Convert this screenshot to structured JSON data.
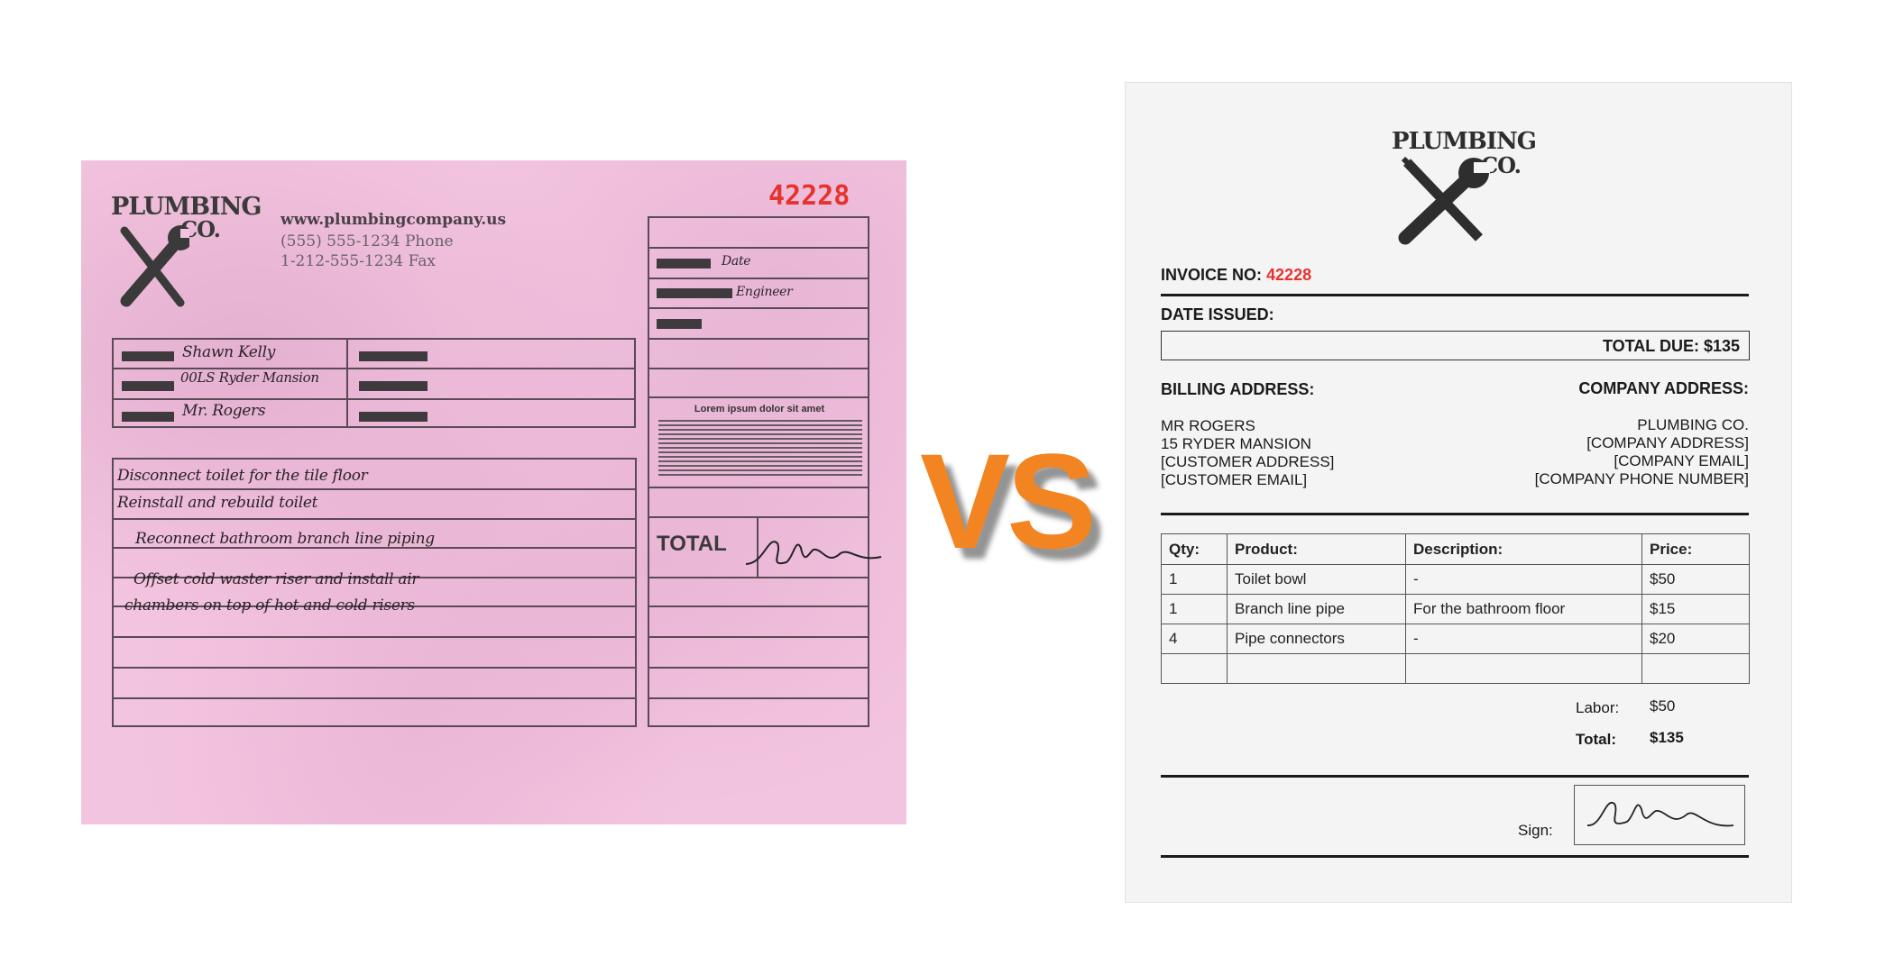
{
  "handwritten_invoice": {
    "logo": {
      "line1": "PLUMBING",
      "line2": "CO."
    },
    "website": "www.plumbingcompany.us",
    "phone": "(555) 555-1234 Phone",
    "fax": "1-212-555-1234 Fax",
    "invoice_number": "42228",
    "info_fields": [
      "Date",
      "Engineer"
    ],
    "customer": [
      "Shawn Kelly",
      "00LS Ryder Mansion",
      "Mr. Rogers"
    ],
    "terms_title": "Lorem ipsum dolor sit amet",
    "work_lines": [
      "Disconnect toilet for the tile floor",
      "Reinstall and rebuild toilet",
      "Reconnect bathroom branch line piping",
      "Offset cold waster riser and install air",
      "chambers on top of hot and cold risers"
    ],
    "total_label": "TOTAL",
    "colors": {
      "paper": "#f3c4df",
      "number": "#e8322e"
    }
  },
  "vs_label": "VS",
  "digital_invoice": {
    "logo": {
      "line1": "PLUMBING",
      "line2": "CO."
    },
    "invoice_no_label": "INVOICE NO:",
    "invoice_no": "42228",
    "date_issued_label": "DATE ISSUED:",
    "total_due": "TOTAL DUE: $135",
    "billing_label": "BILLING ADDRESS:",
    "billing": [
      "MR ROGERS",
      "15 RYDER MANSION",
      "[CUSTOMER ADDRESS]",
      "[CUSTOMER EMAIL]"
    ],
    "company_label": "COMPANY ADDRESS:",
    "company": [
      "PLUMBING CO.",
      "[COMPANY ADDRESS]",
      "[COMPANY EMAIL]",
      "[COMPANY PHONE NUMBER]"
    ],
    "table": {
      "headers": [
        "Qty:",
        "Product:",
        "Description:",
        "Price:"
      ],
      "rows": [
        [
          "1",
          "Toilet bowl",
          "-",
          "$50"
        ],
        [
          "1",
          "Branch line pipe",
          "For the bathroom floor",
          "$15"
        ],
        [
          "4",
          "Pipe connectors",
          "-",
          "$20"
        ],
        [
          "",
          "",
          "",
          ""
        ]
      ]
    },
    "labor_label": "Labor:",
    "labor": "$50",
    "total_label": "Total:",
    "total": "$135",
    "sign_label": "Sign:",
    "colors": {
      "accent": "#e8322e",
      "vs": "#f28421"
    }
  }
}
